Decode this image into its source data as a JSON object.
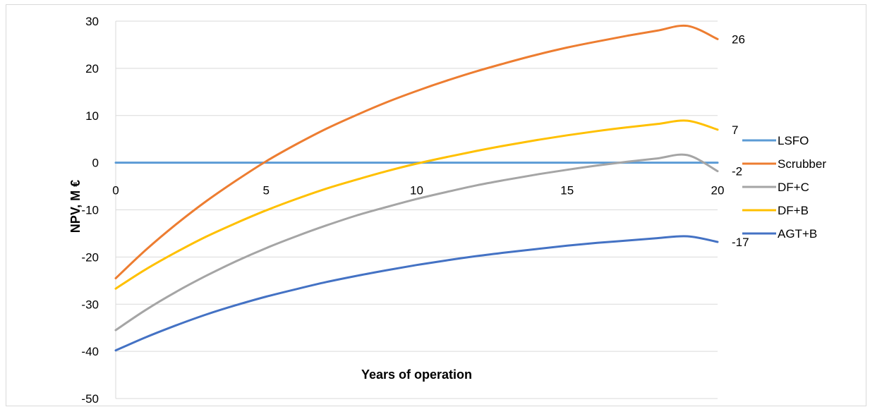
{
  "chart_data": {
    "type": "line",
    "xlabel": "Years of operation",
    "ylabel": "NPV, M €",
    "xlim": [
      0,
      20
    ],
    "ylim": [
      -50,
      30
    ],
    "x_ticks": [
      0,
      5,
      10,
      15,
      20
    ],
    "y_ticks": [
      30,
      20,
      10,
      0,
      -10,
      -20,
      -30,
      -40,
      -50
    ],
    "grid": "horizontal",
    "legend_position": "right",
    "x": [
      0,
      1,
      2,
      3,
      4,
      5,
      6,
      7,
      8,
      9,
      10,
      11,
      12,
      13,
      14,
      15,
      16,
      17,
      18,
      19,
      20
    ],
    "series": [
      {
        "name": "LSFO",
        "color": "#5B9BD5",
        "values": [
          0,
          0,
          0,
          0,
          0,
          0,
          0,
          0,
          0,
          0,
          0,
          0,
          0,
          0,
          0,
          0,
          0,
          0,
          0,
          0,
          0
        ]
      },
      {
        "name": "Scrubber",
        "color": "#ED7D31",
        "end_label": "26",
        "values": [
          -24.5,
          -18.5,
          -13.1,
          -8.2,
          -3.8,
          0.3,
          3.9,
          7.2,
          10.1,
          12.8,
          15.2,
          17.4,
          19.4,
          21.2,
          22.9,
          24.4,
          25.7,
          26.9,
          28,
          29.0,
          26.2
        ]
      },
      {
        "name": "DF+C",
        "color": "#A5A5A5",
        "end_label": "-2",
        "values": [
          -35.5,
          -31.2,
          -27.4,
          -24.0,
          -20.9,
          -18.1,
          -15.6,
          -13.3,
          -11.2,
          -9.4,
          -7.7,
          -6.2,
          -4.8,
          -3.6,
          -2.5,
          -1.5,
          -0.6,
          0.2,
          0.9,
          1.6,
          -1.8
        ]
      },
      {
        "name": "DF+B",
        "color": "#FFC000",
        "end_label": "7",
        "values": [
          -26.7,
          -22.6,
          -19.0,
          -15.7,
          -12.8,
          -10.1,
          -7.7,
          -5.5,
          -3.6,
          -1.8,
          -0.2,
          1.2,
          2.5,
          3.7,
          4.8,
          5.8,
          6.7,
          7.5,
          8.2,
          8.9,
          7
        ]
      },
      {
        "name": "AGT+B",
        "color": "#4472C4",
        "end_label": "-17",
        "values": [
          -39.8,
          -37.0,
          -34.5,
          -32.2,
          -30.2,
          -28.4,
          -26.8,
          -25.3,
          -24.0,
          -22.8,
          -21.7,
          -20.7,
          -19.8,
          -19.0,
          -18.3,
          -17.6,
          -17.0,
          -16.5,
          -16.0,
          -15.6,
          -16.8
        ]
      }
    ]
  }
}
